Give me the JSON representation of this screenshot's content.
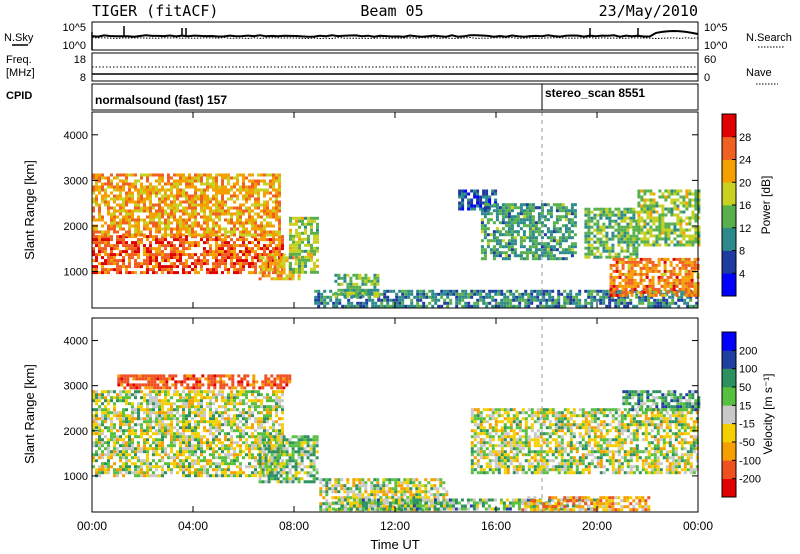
{
  "header": {
    "station": "TIGER (fitACF)",
    "beam": "Beam 05",
    "date": "23/May/2010"
  },
  "noise_panel": {
    "left_label": "N.Sky",
    "left_ticks": [
      "10^5",
      "10^0"
    ],
    "right_ticks": [
      "10^5",
      "10^0"
    ],
    "right_label": "N.Search"
  },
  "freq_panel": {
    "left_label_1": "Freq.",
    "left_label_2": "[MHz]",
    "left_ticks": [
      "18",
      "8"
    ],
    "right_ticks": [
      "60",
      "0"
    ],
    "right_label": "Nave"
  },
  "cpid_panel": {
    "label": "CPID",
    "modes": [
      {
        "name": "normalsound (fast) 157",
        "start_hour": 0
      },
      {
        "name": "stereo_scan 8551",
        "start_hour": 18
      }
    ]
  },
  "chart_data": [
    {
      "type": "heatmap",
      "parameter": "power",
      "ylabel": "Slant Range [km]",
      "ylim": [
        200,
        4500
      ],
      "yticks": [
        "1000",
        "2000",
        "3000",
        "4000"
      ],
      "xlabel": "Time UT",
      "xlim": [
        0,
        24
      ],
      "xticks": [
        "00:00",
        "04:00",
        "08:00",
        "12:00",
        "16:00",
        "20:00",
        "00:00"
      ],
      "colorbar": {
        "label": "Power [dB]",
        "levels": [
          0,
          4,
          8,
          12,
          16,
          20,
          24,
          28,
          32
        ],
        "labels": [
          "4",
          "8",
          "12",
          "16",
          "20",
          "24",
          "28"
        ],
        "colors": [
          "#0000ff",
          "#1e3ca0",
          "#2c8a8a",
          "#58b04c",
          "#c8d020",
          "#f5a000",
          "#f06020",
          "#e00000"
        ]
      },
      "regions": [
        {
          "t0": 0.0,
          "t1": 7.6,
          "r0": 1000,
          "r1": 1800,
          "value": 26
        },
        {
          "t0": 0.0,
          "t1": 7.4,
          "r0": 1800,
          "r1": 3150,
          "value": 22
        },
        {
          "t0": 6.6,
          "t1": 8.2,
          "r0": 850,
          "r1": 1400,
          "value": 22
        },
        {
          "t0": 7.8,
          "t1": 8.9,
          "r0": 1000,
          "r1": 2200,
          "value": 16
        },
        {
          "t0": 8.8,
          "t1": 24.0,
          "r0": 250,
          "r1": 600,
          "value": 10
        },
        {
          "t0": 9.6,
          "t1": 11.3,
          "r0": 450,
          "r1": 950,
          "value": 14
        },
        {
          "t0": 14.5,
          "t1": 16.0,
          "r0": 2400,
          "r1": 2800,
          "value": 6
        },
        {
          "t0": 15.4,
          "t1": 19.2,
          "r0": 1300,
          "r1": 2500,
          "value": 12
        },
        {
          "t0": 19.5,
          "t1": 21.6,
          "r0": 1300,
          "r1": 2400,
          "value": 14
        },
        {
          "t0": 20.5,
          "t1": 24.0,
          "r0": 500,
          "r1": 1300,
          "value": 24
        },
        {
          "t0": 21.6,
          "t1": 24.0,
          "r0": 1600,
          "r1": 2800,
          "value": 16
        }
      ]
    },
    {
      "type": "heatmap",
      "parameter": "velocity",
      "ylabel": "Slant Range [km]",
      "ylim": [
        200,
        4500
      ],
      "yticks": [
        "1000",
        "2000",
        "3000",
        "4000"
      ],
      "xlabel": "Time UT",
      "xlim": [
        0,
        24
      ],
      "xticks": [
        "00:00",
        "04:00",
        "08:00",
        "12:00",
        "16:00",
        "20:00",
        "00:00"
      ],
      "colorbar": {
        "label": "Velocity [m s⁻¹]",
        "levels": [
          -250,
          -200,
          -100,
          -50,
          -15,
          15,
          50,
          100,
          200,
          250
        ],
        "labels": [
          "200",
          "100",
          "50",
          "15",
          "-15",
          "-50",
          "-100",
          "-200"
        ],
        "colors": [
          "#e00000",
          "#f05020",
          "#f5a000",
          "#f5d000",
          "#c8c8c8",
          "#58c040",
          "#2c9060",
          "#1e40a0",
          "#0000ff"
        ]
      },
      "regions": [
        {
          "t0": 0.0,
          "t1": 7.6,
          "r0": 1000,
          "r1": 2900,
          "value": 0
        },
        {
          "t0": 1.0,
          "t1": 7.8,
          "r0": 2950,
          "r1": 3250,
          "value": -150
        },
        {
          "t0": 6.6,
          "t1": 8.9,
          "r0": 850,
          "r1": 1900,
          "value": 30
        },
        {
          "t0": 9.0,
          "t1": 14.0,
          "r0": 250,
          "r1": 950,
          "value": 0
        },
        {
          "t0": 9.5,
          "t1": 20.0,
          "r0": 250,
          "r1": 500,
          "value": 40
        },
        {
          "t0": 15.0,
          "t1": 24.0,
          "r0": 1100,
          "r1": 2500,
          "value": 0
        },
        {
          "t0": 17.0,
          "t1": 22.0,
          "r0": 250,
          "r1": 550,
          "value": -60
        },
        {
          "t0": 21.0,
          "t1": 24.0,
          "r0": 2500,
          "r1": 2900,
          "value": 60
        }
      ]
    }
  ]
}
